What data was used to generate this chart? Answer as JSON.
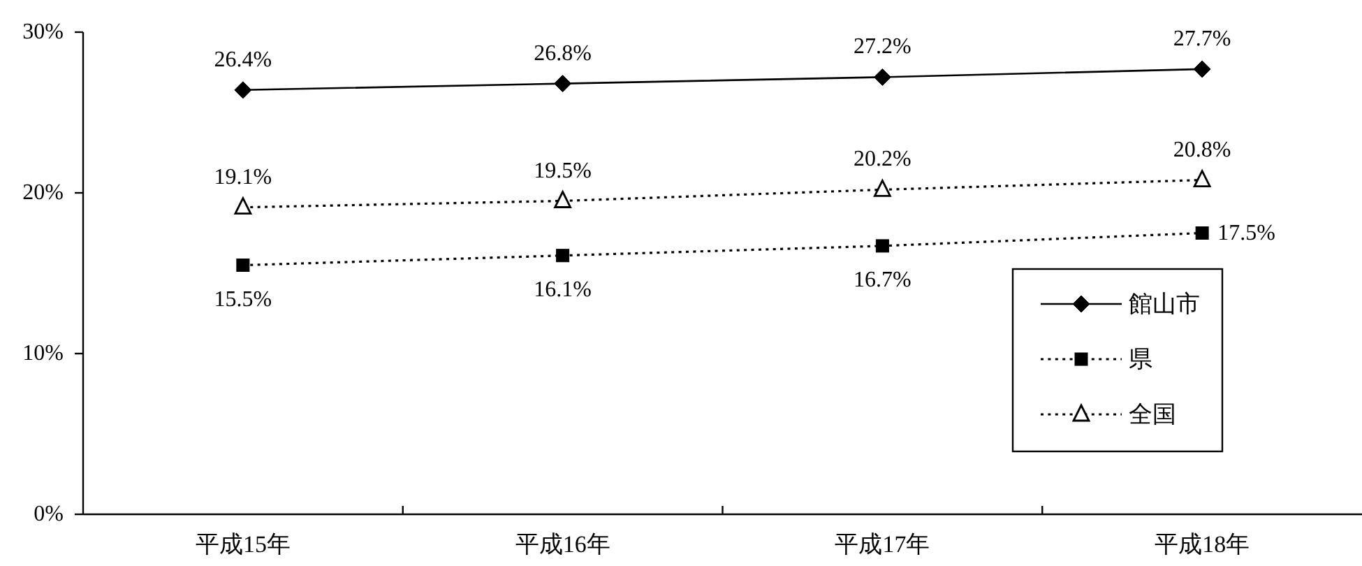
{
  "chart_data": {
    "type": "line",
    "categories": [
      "平成15年",
      "平成16年",
      "平成17年",
      "平成18年"
    ],
    "series": [
      {
        "name": "館山市",
        "color": "#000000",
        "marker": "diamond",
        "line_style": "solid",
        "values": [
          26.4,
          26.8,
          27.2,
          27.7
        ],
        "value_labels": [
          "26.4%",
          "26.8%",
          "27.2%",
          "27.7%"
        ]
      },
      {
        "name": "県",
        "color": "#000000",
        "marker": "square",
        "line_style": "dotted",
        "values": [
          15.5,
          16.1,
          16.7,
          17.5
        ],
        "value_labels": [
          "15.5%",
          "16.1%",
          "16.7%",
          "17.5%"
        ]
      },
      {
        "name": "全国",
        "color": "#000000",
        "marker": "triangle",
        "line_style": "dotted",
        "values": [
          19.1,
          19.5,
          20.2,
          20.8
        ],
        "value_labels": [
          "19.1%",
          "19.5%",
          "20.2%",
          "20.8%"
        ]
      }
    ],
    "ylim": [
      0,
      30
    ],
    "yticks": [
      {
        "value": 0,
        "label": "0%"
      },
      {
        "value": 10,
        "label": "10%"
      },
      {
        "value": 20,
        "label": "20%"
      },
      {
        "value": 30,
        "label": "30%"
      }
    ],
    "grid": false,
    "legend": "bottom right"
  }
}
